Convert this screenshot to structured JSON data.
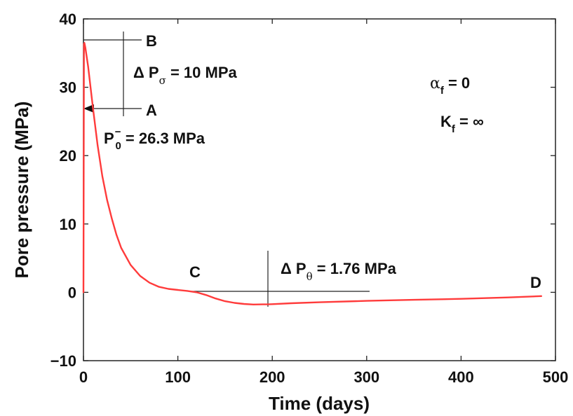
{
  "chart_data": {
    "type": "line",
    "title": "",
    "xlabel": "Time (days)",
    "ylabel": "Pore pressure (MPa)",
    "xlim": [
      0,
      500
    ],
    "ylim": [
      -10,
      40
    ],
    "xticks": [
      0,
      100,
      200,
      300,
      400,
      500
    ],
    "yticks": [
      -10,
      0,
      10,
      20,
      30,
      40
    ],
    "xtick_labels": [
      "0",
      "100",
      "200",
      "300",
      "400",
      "500"
    ],
    "ytick_labels": [
      "−10",
      "0",
      "10",
      "20",
      "30",
      "40"
    ],
    "grid": false,
    "series": [
      {
        "color": "#ff3b3b",
        "x": [
          0,
          0.5,
          1,
          2,
          5,
          10,
          15,
          20,
          25,
          30,
          35,
          40,
          50,
          60,
          70,
          80,
          90,
          100,
          110,
          120,
          130,
          140,
          150,
          160,
          170,
          180,
          190,
          195,
          200,
          220,
          250,
          300,
          350,
          400,
          450,
          485
        ],
        "y": [
          0,
          36.3,
          36.5,
          35.8,
          33.0,
          27.0,
          21.5,
          17.0,
          13.5,
          10.8,
          8.4,
          6.5,
          4.0,
          2.4,
          1.4,
          0.8,
          0.5,
          0.35,
          0.2,
          0.0,
          -0.4,
          -0.9,
          -1.3,
          -1.55,
          -1.7,
          -1.78,
          -1.76,
          -1.76,
          -1.73,
          -1.6,
          -1.45,
          -1.25,
          -1.1,
          -0.95,
          -0.75,
          -0.55
        ]
      }
    ],
    "annotations": {
      "point_b": "B",
      "point_a": "A",
      "point_c": "C",
      "point_d": "D",
      "delta_p_sigma": {
        "prefix": "Δ P",
        "sub": "σ",
        "suffix": " = 10 MPa"
      },
      "p0": {
        "main": "P",
        "sup": "−",
        "sub": "0",
        "suffix": " = 26.3 MPa"
      },
      "delta_p_theta": {
        "prefix": "Δ P",
        "sub": "θ",
        "suffix": " = 1.76 MPa"
      },
      "alpha_f": {
        "main": "α",
        "sub": "f",
        "suffix": " = 0"
      },
      "k_f": {
        "main": "K",
        "sub": "f",
        "suffix": " = ∞"
      }
    }
  }
}
